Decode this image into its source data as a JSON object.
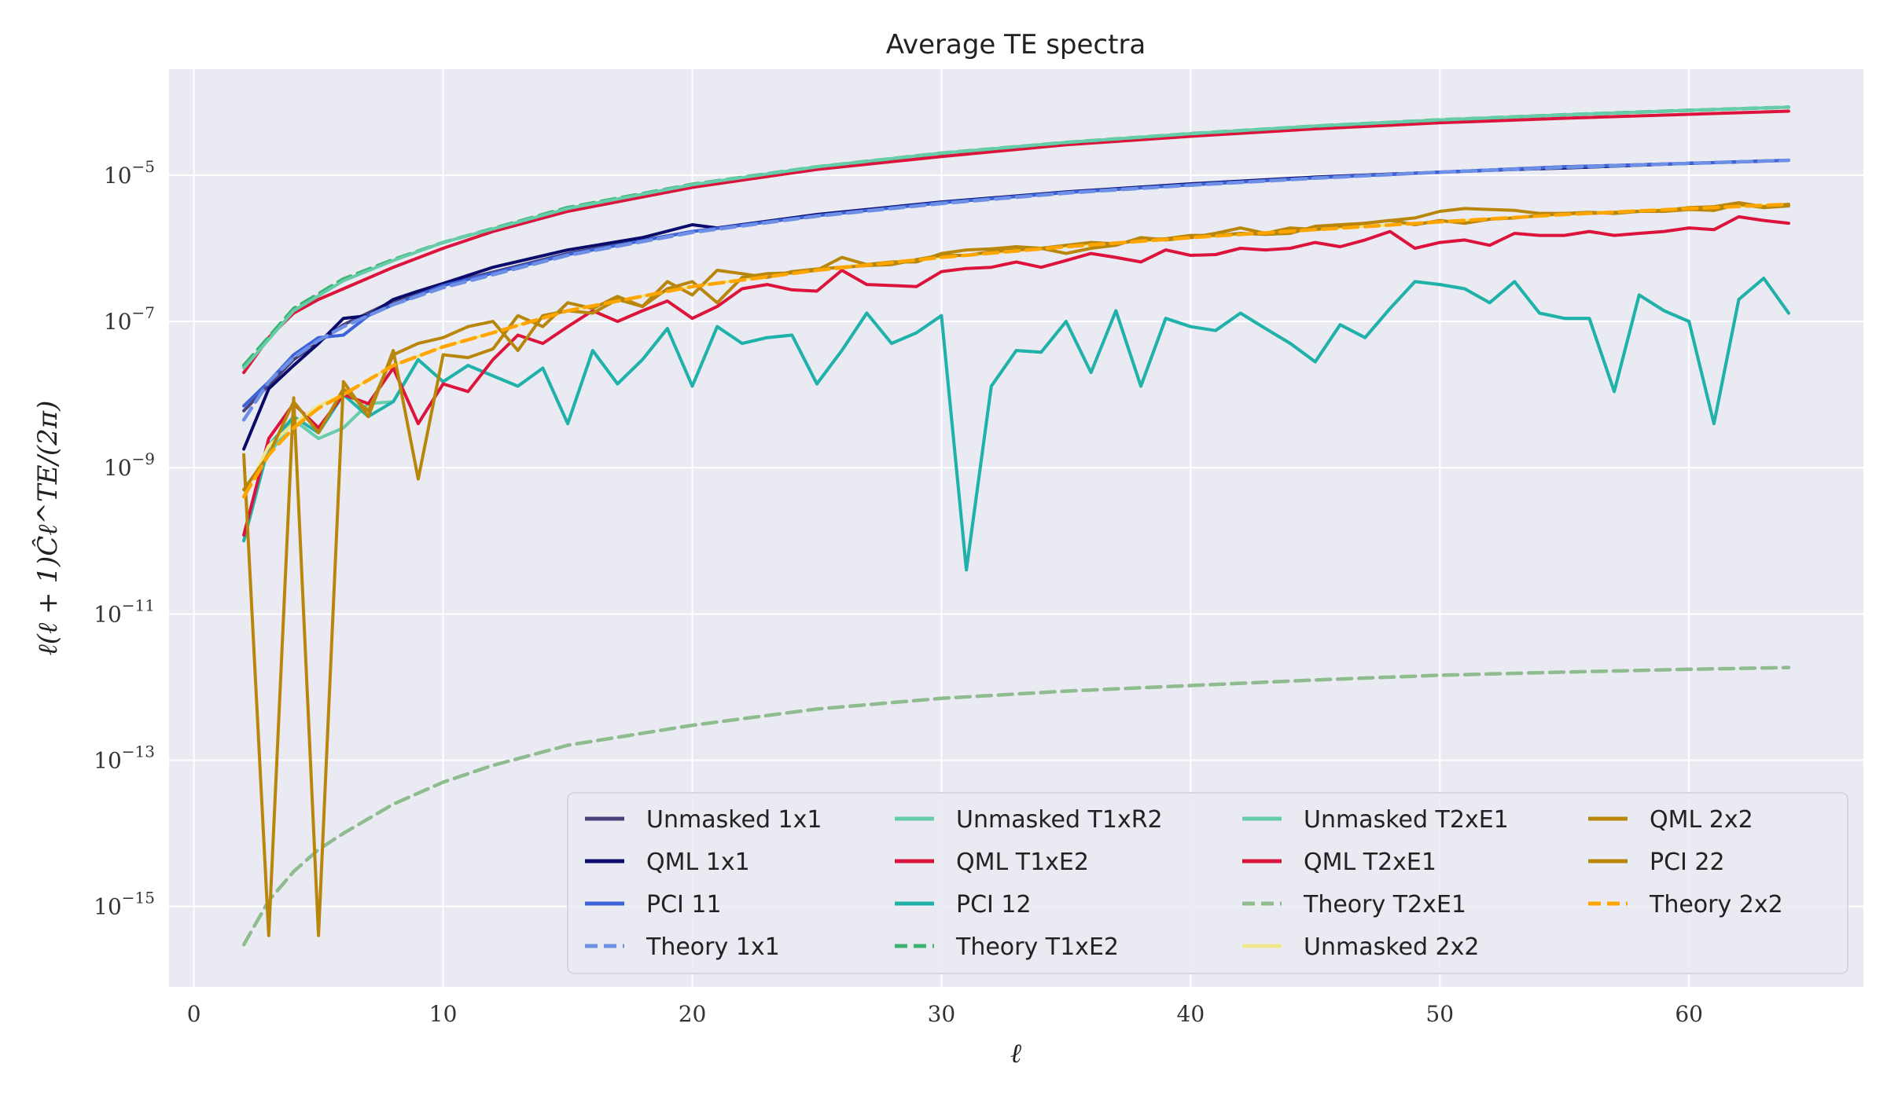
{
  "chart_data": {
    "type": "line",
    "title": "Average TE spectra",
    "xlabel": "ℓ",
    "ylabel": "ℓ(ℓ + 1)Ĉℓ^TE/(2π)",
    "xlim": [
      -1,
      67
    ],
    "ylim_log10": [
      -16.1,
      -3.55
    ],
    "yscale": "log",
    "grid": true,
    "legend_location": "lower-right",
    "legend_columns": 4,
    "x_ticks": [
      "0",
      "10",
      "20",
      "30",
      "40",
      "50",
      "60"
    ],
    "y_ticks": [
      "10^-5",
      "10^-7",
      "10^-9",
      "10^-11",
      "10^-13",
      "10^-15"
    ],
    "series": [
      {
        "name": "Unmasked 1x1",
        "color": "#48417a",
        "style": "solid",
        "x": [
          2,
          4,
          6,
          8,
          10,
          15,
          20,
          25,
          30,
          35,
          40,
          45,
          50,
          55,
          60,
          64
        ],
        "y": [
          6e-09,
          3e-08,
          9e-08,
          1.9e-07,
          3.2e-07,
          8.5e-07,
          1.7e-06,
          2.8e-06,
          4.2e-06,
          5.8e-06,
          7.4e-06,
          9.2e-06,
          1.1e-05,
          1.3e-05,
          1.45e-05,
          1.6e-05
        ]
      },
      {
        "name": "QML 1x1",
        "color": "#0b0b6b",
        "style": "solid",
        "x": [
          2,
          3,
          4,
          5,
          6,
          7,
          8,
          9,
          10,
          12,
          15,
          18,
          20,
          21,
          25,
          30,
          35,
          40,
          45,
          50,
          53,
          55,
          60,
          64
        ],
        "y": [
          1.8e-09,
          1.2e-08,
          2.5e-08,
          5e-08,
          1.1e-07,
          1.2e-07,
          2e-07,
          2.6e-07,
          3.3e-07,
          5.5e-07,
          9.5e-07,
          1.4e-06,
          2.1e-06,
          1.9e-06,
          2.9e-06,
          4.3e-06,
          5.9e-06,
          7.6e-06,
          9.4e-06,
          1.1e-05,
          1.2e-05,
          1.25e-05,
          1.45e-05,
          1.6e-05
        ]
      },
      {
        "name": "PCI 11",
        "color": "#3d63d9",
        "style": "solid",
        "x": [
          2,
          3,
          4,
          5,
          6,
          7,
          8,
          10,
          15,
          20,
          25,
          30,
          35,
          40,
          45,
          50,
          55,
          60,
          64
        ],
        "y": [
          7e-09,
          1.5e-08,
          3.5e-08,
          6e-08,
          6.5e-08,
          1.2e-07,
          1.7e-07,
          3.1e-07,
          8.2e-07,
          1.7e-06,
          2.8e-06,
          4.2e-06,
          5.8e-06,
          7.4e-06,
          9.2e-06,
          1.1e-05,
          1.3e-05,
          1.45e-05,
          1.6e-05
        ]
      },
      {
        "name": "Theory 1x1",
        "color": "#6e8fe6",
        "style": "dashed",
        "x": [
          2,
          3,
          4,
          5,
          6,
          8,
          10,
          15,
          20,
          25,
          30,
          35,
          40,
          45,
          50,
          55,
          60,
          64
        ],
        "y": [
          4.5e-09,
          1.5e-08,
          3.2e-08,
          5.5e-08,
          8.5e-08,
          1.7e-07,
          2.9e-07,
          8e-07,
          1.65e-06,
          2.75e-06,
          4.1e-06,
          5.7e-06,
          7.3e-06,
          9.1e-06,
          1.1e-05,
          1.28e-05,
          1.45e-05,
          1.6e-05
        ]
      },
      {
        "name": "Unmasked T1xR2",
        "color": "#66cdaa",
        "style": "solid",
        "x": [
          2,
          3,
          4,
          5,
          6,
          7,
          8,
          9,
          10,
          11,
          12,
          13,
          14,
          15,
          16,
          17,
          18,
          19,
          20,
          21,
          22,
          23,
          24,
          25,
          26,
          27,
          28,
          29,
          30,
          31,
          32,
          33,
          34,
          35,
          36,
          37,
          38,
          39,
          40,
          41,
          42,
          43,
          44,
          45,
          46,
          47,
          48,
          49,
          50,
          51,
          52,
          53,
          54,
          55,
          56,
          57,
          58,
          59,
          60,
          61,
          62,
          63,
          64
        ],
        "y": [
          5e-10,
          1.5e-09,
          4.5e-09,
          2.5e-09,
          3.5e-09,
          7.5e-09,
          8e-09,
          3e-08,
          1.5e-08,
          2.5e-08,
          1.8e-08,
          1.3e-08,
          2.3e-08,
          4e-09,
          4e-08,
          1.4e-08,
          3e-08,
          8e-08,
          1.3e-08,
          8.5e-08,
          5e-08,
          6e-08,
          6.5e-08,
          1.4e-08,
          4e-08,
          1.3e-07,
          5e-08,
          7e-08,
          1.2e-07,
          4e-11,
          1.3e-08,
          4e-08,
          3.8e-08,
          1e-07,
          2e-08,
          1.4e-07,
          1.3e-08,
          1.1e-07,
          8.5e-08,
          7.5e-08,
          1.3e-07,
          8e-08,
          5e-08,
          2.8e-08,
          9e-08,
          6e-08,
          1.5e-07,
          3.5e-07,
          3.2e-07,
          2.8e-07,
          1.8e-07,
          3.5e-07,
          1.3e-07,
          1.1e-07,
          1.1e-07,
          1.1e-08,
          2.3e-07,
          1.4e-07,
          1e-07,
          4e-09,
          2e-07,
          3.9e-07,
          1.3e-07
        ]
      },
      {
        "name": "QML T1xE2",
        "color": "#dc143c",
        "style": "solid",
        "x": [
          2,
          3,
          4,
          5,
          6,
          8,
          10,
          12,
          15,
          20,
          25,
          30,
          35,
          40,
          45,
          50,
          55,
          60,
          64
        ],
        "y": [
          2e-08,
          6e-08,
          1.3e-07,
          2e-07,
          2.8e-07,
          5.5e-07,
          1e-06,
          1.7e-06,
          3.2e-06,
          6.8e-06,
          1.2e-05,
          1.8e-05,
          2.6e-05,
          3.4e-05,
          4.3e-05,
          5.2e-05,
          6e-05,
          6.8e-05,
          7.5e-05
        ]
      },
      {
        "name": "PCI 12",
        "color": "#20b2aa",
        "style": "solid",
        "x": [
          2,
          3,
          4,
          5,
          6,
          7,
          8,
          9,
          10,
          11,
          12,
          13,
          14,
          15,
          16,
          17,
          18,
          19,
          20,
          21,
          22,
          23,
          24,
          25,
          26,
          27,
          28,
          29,
          30,
          31,
          32,
          33,
          34,
          35,
          36,
          37,
          38,
          39,
          40,
          41,
          42,
          43,
          44,
          45,
          46,
          47,
          48,
          49,
          50,
          51,
          52,
          53,
          54,
          55,
          56,
          57,
          58,
          59,
          60,
          61,
          62,
          63,
          64
        ],
        "y": [
          1e-10,
          2e-09,
          5e-09,
          3e-09,
          1e-08,
          5e-09,
          8e-09,
          3e-08,
          1.5e-08,
          2.5e-08,
          1.8e-08,
          1.3e-08,
          2.3e-08,
          4e-09,
          4e-08,
          1.4e-08,
          3e-08,
          8e-08,
          1.3e-08,
          8.5e-08,
          5e-08,
          6e-08,
          6.5e-08,
          1.4e-08,
          4e-08,
          1.3e-07,
          5e-08,
          7e-08,
          1.2e-07,
          4e-11,
          1.3e-08,
          4e-08,
          3.8e-08,
          1e-07,
          2e-08,
          1.4e-07,
          1.3e-08,
          1.1e-07,
          8.5e-08,
          7.5e-08,
          1.3e-07,
          8e-08,
          5e-08,
          2.8e-08,
          9e-08,
          6e-08,
          1.5e-07,
          3.5e-07,
          3.2e-07,
          2.8e-07,
          1.8e-07,
          3.5e-07,
          1.3e-07,
          1.1e-07,
          1.1e-07,
          1.1e-08,
          2.3e-07,
          1.4e-07,
          1e-07,
          4e-09,
          2e-07,
          3.9e-07,
          1.3e-07
        ]
      },
      {
        "name": "Theory T1xE2",
        "color": "#3cb371",
        "style": "dashed",
        "x": [
          2,
          4,
          6,
          8,
          10,
          15,
          20,
          25,
          30,
          35,
          40,
          45,
          50,
          55,
          60,
          64
        ],
        "y": [
          2.5e-08,
          1.5e-07,
          3.8e-07,
          7e-07,
          1.2e-06,
          3.6e-06,
          7.5e-06,
          1.3e-05,
          2e-05,
          2.8e-05,
          3.7e-05,
          4.7e-05,
          5.7e-05,
          6.7e-05,
          7.7e-05,
          8.5e-05
        ]
      },
      {
        "name": "Unmasked T2xE1",
        "color": "#66cdaa",
        "style": "solid",
        "x": [
          2,
          4,
          6,
          8,
          10,
          15,
          20,
          25,
          30,
          35,
          40,
          45,
          50,
          55,
          60,
          64
        ],
        "y": [
          2.3e-08,
          1.4e-07,
          3.6e-07,
          6.8e-07,
          1.2e-06,
          3.5e-06,
          7.4e-06,
          1.3e-05,
          2e-05,
          2.8e-05,
          3.7e-05,
          4.7e-05,
          5.7e-05,
          6.7e-05,
          7.7e-05,
          8.5e-05
        ]
      },
      {
        "name": "QML T2xE1",
        "color": "#dc143c",
        "style": "solid",
        "x": [
          2,
          3,
          4,
          5,
          6,
          7,
          8,
          9,
          10,
          11,
          12,
          13,
          14,
          15,
          16,
          17,
          18,
          19,
          20,
          21,
          22,
          23,
          24,
          25,
          26,
          27,
          28,
          29,
          30,
          31,
          32,
          33,
          34,
          35,
          36,
          37,
          38,
          39,
          40,
          41,
          42,
          43,
          44,
          45,
          46,
          47,
          48,
          49,
          50,
          51,
          52,
          53,
          54,
          55,
          56,
          57,
          58,
          59,
          60,
          61,
          62,
          63,
          64
        ],
        "y": [
          1.2e-10,
          2.5e-09,
          7.5e-09,
          3.5e-09,
          1e-08,
          7.5e-09,
          2.3e-08,
          4e-09,
          1.4e-08,
          1.1e-08,
          3e-08,
          6.5e-08,
          5e-08,
          8.5e-08,
          1.4e-07,
          1e-07,
          1.4e-07,
          1.9e-07,
          1.1e-07,
          1.6e-07,
          2.8e-07,
          3.2e-07,
          2.7e-07,
          2.6e-07,
          5e-07,
          3.2e-07,
          3.1e-07,
          3e-07,
          4.8e-07,
          5.3e-07,
          5.5e-07,
          6.5e-07,
          5.5e-07,
          6.8e-07,
          8.5e-07,
          7.5e-07,
          6.5e-07,
          9.5e-07,
          8e-07,
          8.2e-07,
          1e-06,
          9.5e-07,
          1e-06,
          1.2e-06,
          1.05e-06,
          1.3e-06,
          1.7e-06,
          1e-06,
          1.2e-06,
          1.3e-06,
          1.1e-06,
          1.6e-06,
          1.5e-06,
          1.5e-06,
          1.7e-06,
          1.5e-06,
          1.6e-06,
          1.7e-06,
          1.9e-06,
          1.8e-06,
          2.7e-06,
          2.4e-06,
          2.2e-06
        ]
      },
      {
        "name": "Theory T2xE1",
        "color": "#8fbc8f",
        "style": "dashed",
        "x": [
          2,
          3,
          4,
          5,
          6,
          8,
          10,
          12,
          15,
          20,
          25,
          30,
          35,
          40,
          45,
          50,
          55,
          60,
          64
        ],
        "y": [
          3e-16,
          1.2e-15,
          3e-15,
          6e-15,
          1e-14,
          2.5e-14,
          5e-14,
          8.5e-14,
          1.6e-13,
          3e-13,
          5e-13,
          7e-13,
          8.8e-13,
          1.05e-12,
          1.25e-12,
          1.45e-12,
          1.6e-12,
          1.75e-12,
          1.85e-12
        ]
      },
      {
        "name": "Unmasked 2x2",
        "color": "#f0e68c",
        "style": "solid",
        "x": [
          2,
          3,
          4,
          5,
          6,
          8,
          10,
          15,
          20,
          25,
          30,
          35,
          40,
          45,
          50,
          55,
          60,
          64
        ],
        "y": [
          4e-10,
          2e-09,
          4e-09,
          7e-09,
          1e-08,
          2.5e-08,
          4.5e-08,
          1.4e-07,
          3e-07,
          5.2e-07,
          7.5e-07,
          1.05e-06,
          1.4e-06,
          1.8e-06,
          2.3e-06,
          2.9e-06,
          3.5e-06,
          4e-06
        ]
      },
      {
        "name": "QML 2x2",
        "color": "#b8860b",
        "style": "solid",
        "x": [
          2,
          3,
          4,
          5,
          6,
          7,
          8,
          9,
          10,
          11,
          12,
          13,
          14,
          15,
          16,
          17,
          18,
          19,
          20,
          21,
          22,
          23,
          24,
          25,
          26,
          27,
          28,
          29,
          30,
          31,
          32,
          33,
          34,
          35,
          36,
          37,
          38,
          39,
          40,
          41,
          42,
          43,
          44,
          45,
          46,
          47,
          48,
          49,
          50,
          51,
          52,
          53,
          54,
          55,
          56,
          57,
          58,
          59,
          60,
          61,
          62,
          63,
          64
        ],
        "y": [
          5e-10,
          1.5e-09,
          8e-09,
          3e-09,
          1.2e-08,
          6e-09,
          3.5e-08,
          5e-08,
          6e-08,
          8.5e-08,
          1e-07,
          4e-08,
          1.2e-07,
          1.4e-07,
          1.3e-07,
          2e-07,
          1.6e-07,
          2.8e-07,
          3.5e-07,
          1.8e-07,
          4e-07,
          4.5e-07,
          4.6e-07,
          5e-07,
          7.5e-07,
          6e-07,
          6.5e-07,
          6.5e-07,
          8.5e-07,
          9.5e-07,
          9.8e-07,
          1.05e-06,
          1e-06,
          1.1e-06,
          1.2e-06,
          1.15e-06,
          1.3e-06,
          1.35e-06,
          1.5e-06,
          1.5e-06,
          1.6e-06,
          1.55e-06,
          1.6e-06,
          2e-06,
          2.1e-06,
          2.2e-06,
          2.4e-06,
          2.1e-06,
          2.4e-06,
          2.2e-06,
          2.5e-06,
          2.6e-06,
          2.8e-06,
          3e-06,
          3.1e-06,
          3e-06,
          3.2e-06,
          3.2e-06,
          3.4e-06,
          3.3e-06,
          4e-06,
          3.6e-06,
          3.8e-06
        ]
      },
      {
        "name": "PCI 22",
        "color": "#b8860b",
        "style": "solid",
        "x": [
          2,
          3,
          4,
          5,
          6,
          7,
          8,
          9,
          10,
          11,
          12,
          13,
          14,
          15,
          16,
          17,
          18,
          19,
          20,
          21,
          22,
          23,
          24,
          25,
          26,
          27,
          28,
          29,
          30,
          31,
          32,
          33,
          34,
          35,
          36,
          37,
          38,
          39,
          40,
          41,
          42,
          43,
          44,
          45,
          46,
          47,
          48,
          49,
          50,
          51,
          52,
          53,
          54,
          55,
          56,
          57,
          58,
          59,
          60,
          61,
          62,
          63,
          64
        ],
        "y": [
          1.5e-09,
          4e-16,
          9e-09,
          4e-16,
          1.5e-08,
          5e-09,
          4e-08,
          7e-10,
          3.5e-08,
          3.2e-08,
          4.2e-08,
          1.2e-07,
          8.5e-08,
          1.8e-07,
          1.5e-07,
          2.2e-07,
          1.6e-07,
          3.5e-07,
          2.3e-07,
          5e-07,
          4.5e-07,
          4e-07,
          4.8e-07,
          5.2e-07,
          5.5e-07,
          5.8e-07,
          6e-07,
          7e-07,
          8e-07,
          8e-07,
          9e-07,
          9.5e-07,
          1e-06,
          8.5e-07,
          1e-06,
          1.1e-06,
          1.4e-06,
          1.3e-06,
          1.4e-06,
          1.6e-06,
          1.9e-06,
          1.6e-06,
          1.9e-06,
          1.8e-06,
          2e-06,
          2.2e-06,
          2.4e-06,
          2.6e-06,
          3.2e-06,
          3.5e-06,
          3.4e-06,
          3.3e-06,
          3e-06,
          3e-06,
          3e-06,
          3.1e-06,
          3.2e-06,
          3.3e-06,
          3.6e-06,
          3.7e-06,
          4.2e-06,
          3.7e-06,
          4e-06
        ]
      },
      {
        "name": "Theory 2x2",
        "color": "#ffa500",
        "style": "dashed",
        "x": [
          2,
          3,
          4,
          5,
          6,
          8,
          10,
          12,
          15,
          20,
          25,
          30,
          35,
          40,
          45,
          50,
          55,
          60,
          64
        ],
        "y": [
          4e-10,
          1.5e-09,
          3.5e-09,
          6.5e-09,
          1e-08,
          2.5e-08,
          4.5e-08,
          7e-08,
          1.4e-07,
          3e-07,
          5e-07,
          7.5e-07,
          1.05e-06,
          1.4e-06,
          1.8e-06,
          2.3e-06,
          2.9e-06,
          3.5e-06,
          4e-06
        ]
      }
    ]
  }
}
